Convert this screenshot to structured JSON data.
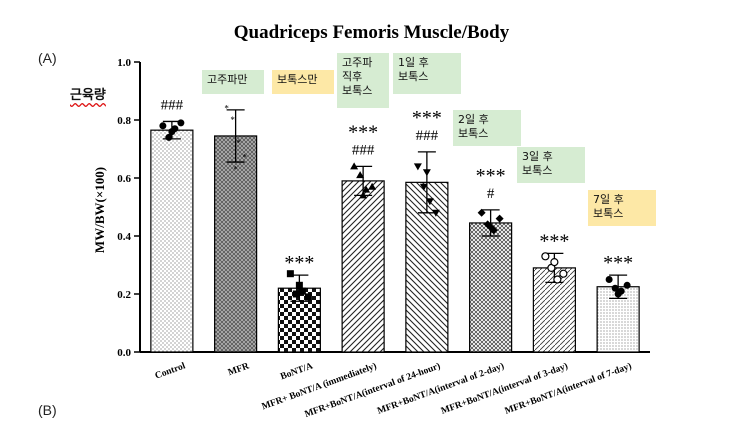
{
  "chart_data": {
    "type": "bar",
    "title": "Quadriceps Femoris Muscle/Body",
    "ylabel": "MW/BW(×100)",
    "xlabel": "",
    "ylim": [
      0,
      1.0
    ],
    "yticks": [
      "0.0",
      "0.2",
      "0.4",
      "0.6",
      "0.8",
      "1.0"
    ],
    "categories": [
      "Control",
      "MFR",
      "BoNT/A",
      "MFR+ BoNT/A (immediately)",
      "MFR+BoNT/A(interval of 24-hour)",
      "MFR+BoNT/A(interval of 2-day)",
      "MFR+BoNT/A(interval of 3-day)",
      "MFR+BoNT/A(interval of 7-day)"
    ],
    "values": [
      0.765,
      0.745,
      0.22,
      0.59,
      0.585,
      0.445,
      0.29,
      0.225
    ],
    "errors": [
      0.03,
      0.09,
      0.045,
      0.05,
      0.105,
      0.045,
      0.05,
      0.04
    ],
    "significance": [
      "###",
      "",
      "***",
      "***\n###",
      "***\n###",
      "***\n#",
      "***",
      "***"
    ],
    "points": [
      [
        0.78,
        0.74,
        0.77,
        0.79,
        0.76
      ],
      [
        0.84,
        0.8,
        0.72,
        0.67,
        0.63
      ],
      [
        0.27,
        0.2,
        0.21,
        0.19,
        0.23
      ],
      [
        0.64,
        0.61,
        0.56,
        0.57,
        0.54
      ],
      [
        0.64,
        0.57,
        0.52,
        0.48,
        0.62
      ],
      [
        0.48,
        0.44,
        0.42,
        0.46,
        0.43
      ],
      [
        0.33,
        0.29,
        0.25,
        0.27,
        0.31
      ],
      [
        0.25,
        0.22,
        0.21,
        0.23,
        0.2
      ]
    ]
  },
  "labels": {
    "panel_a": "(A)",
    "panel_b": "(B)",
    "muscle_mass_korean": "근육량"
  },
  "notes": [
    {
      "text": "고주파만",
      "color": "green"
    },
    {
      "text": "보톡스만",
      "color": "yellow"
    },
    {
      "text": "고주파\n직후\n보톡스",
      "color": "green"
    },
    {
      "text": "1일 후\n보톡스",
      "color": "green"
    },
    {
      "text": "2일 후\n보톡스",
      "color": "green"
    },
    {
      "text": "3일 후\n보톡스",
      "color": "green"
    },
    {
      "text": "7일 후\n보톡스",
      "color": "yellow"
    }
  ]
}
